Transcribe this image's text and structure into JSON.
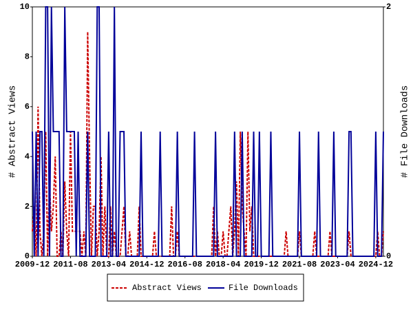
{
  "chart_data": {
    "type": "line",
    "x": [
      "2009-12",
      "2010-01",
      "2010-02",
      "2010-03",
      "2010-04",
      "2010-05",
      "2010-06",
      "2010-07",
      "2010-08",
      "2010-09",
      "2010-10",
      "2010-11",
      "2010-12",
      "2011-01",
      "2011-02",
      "2011-03",
      "2011-04",
      "2011-05",
      "2011-06",
      "2011-07",
      "2011-08",
      "2011-09",
      "2011-10",
      "2011-11",
      "2011-12",
      "2012-01",
      "2012-02",
      "2012-03",
      "2012-04",
      "2012-05",
      "2012-06",
      "2012-07",
      "2012-08",
      "2012-09",
      "2012-10",
      "2012-11",
      "2012-12",
      "2013-01",
      "2013-02",
      "2013-03",
      "2013-04",
      "2013-05",
      "2013-06",
      "2013-07",
      "2013-08",
      "2013-09",
      "2013-10",
      "2013-11",
      "2013-12",
      "2014-01",
      "2014-02",
      "2014-03",
      "2014-04",
      "2014-05",
      "2014-06",
      "2014-07",
      "2014-08",
      "2014-09",
      "2014-10",
      "2014-11",
      "2014-12",
      "2015-01",
      "2015-02",
      "2015-03",
      "2015-04",
      "2015-05",
      "2015-06",
      "2015-07",
      "2015-08",
      "2015-09",
      "2015-10",
      "2015-11",
      "2015-12",
      "2016-01",
      "2016-02",
      "2016-03",
      "2016-04",
      "2016-05",
      "2016-06",
      "2016-07",
      "2016-08",
      "2016-09",
      "2016-10",
      "2016-11",
      "2016-12",
      "2017-01",
      "2017-02",
      "2017-03",
      "2017-04",
      "2017-05",
      "2017-06",
      "2017-07",
      "2017-08",
      "2017-09",
      "2017-10",
      "2017-11",
      "2017-12",
      "2018-01",
      "2018-02",
      "2018-03",
      "2018-04",
      "2018-05",
      "2018-06",
      "2018-07",
      "2018-08",
      "2018-09",
      "2018-10",
      "2018-11",
      "2018-12",
      "2019-01",
      "2019-02",
      "2019-03",
      "2019-04",
      "2019-05",
      "2019-06",
      "2019-07",
      "2019-08",
      "2019-09",
      "2019-10",
      "2019-11",
      "2019-12",
      "2020-01",
      "2020-02",
      "2020-03",
      "2020-04",
      "2020-05",
      "2020-06",
      "2020-07",
      "2020-08",
      "2020-09",
      "2020-10",
      "2020-11",
      "2020-12",
      "2021-01",
      "2021-02",
      "2021-03",
      "2021-04",
      "2021-05",
      "2021-06",
      "2021-07",
      "2021-08",
      "2021-09",
      "2021-10",
      "2021-11",
      "2021-12",
      "2022-01",
      "2022-02",
      "2022-03",
      "2022-04",
      "2022-05",
      "2022-06",
      "2022-07",
      "2022-08",
      "2022-09",
      "2022-10",
      "2022-11",
      "2022-12",
      "2023-01",
      "2023-02",
      "2023-03",
      "2023-04",
      "2023-05",
      "2023-06",
      "2023-07",
      "2023-08",
      "2023-09",
      "2023-10",
      "2023-11",
      "2023-12",
      "2024-01",
      "2024-02",
      "2024-03",
      "2024-04",
      "2024-05",
      "2024-06",
      "2024-07",
      "2024-08",
      "2024-09",
      "2024-10",
      "2024-11",
      "2024-12",
      "2025-01",
      "2025-02",
      "2025-03",
      "2025-04"
    ],
    "xticks": [
      "2009-12",
      "2011-08",
      "2013-04",
      "2014-12",
      "2016-08",
      "2018-04",
      "2019-12",
      "2021-08",
      "2023-04",
      "2024-12"
    ],
    "ylabel": "# Abstract Views",
    "y2label": "# File Downloads",
    "ylim": [
      0,
      10
    ],
    "yticks": [
      0,
      2,
      4,
      6,
      8,
      10
    ],
    "y2lim": [
      0,
      2
    ],
    "y2ticks": [
      0,
      2
    ],
    "series": [
      {
        "name": "Abstract Views",
        "color": "#cc0000",
        "dash": true,
        "values": [
          1,
          2,
          0,
          6,
          1,
          0,
          1,
          5,
          0,
          3,
          1,
          2,
          4,
          0,
          0,
          1,
          0,
          3,
          1,
          0,
          5,
          1,
          1,
          1,
          1,
          1,
          0,
          1,
          0,
          9,
          4,
          0,
          2,
          2,
          0,
          1,
          4,
          0,
          2,
          0,
          0,
          2,
          0,
          1,
          0,
          0,
          0,
          1,
          2,
          0,
          0,
          1,
          0,
          0,
          0,
          0,
          2,
          0,
          0,
          0,
          0,
          0,
          0,
          0,
          1,
          0,
          0,
          0,
          0,
          0,
          0,
          0,
          0,
          2,
          0,
          0,
          1,
          0,
          0,
          0,
          0,
          0,
          0,
          0,
          0,
          0,
          0,
          0,
          0,
          0,
          0,
          0,
          0,
          0,
          0,
          2,
          0,
          1,
          0,
          0,
          1,
          0,
          0,
          1,
          2,
          0,
          1,
          3,
          0,
          5,
          2,
          1,
          0,
          5,
          1,
          2,
          0,
          0,
          0,
          0,
          0,
          0,
          0,
          0,
          0,
          0,
          0,
          0,
          0,
          0,
          0,
          0,
          0,
          1,
          0,
          0,
          0,
          0,
          0,
          0,
          1,
          0,
          0,
          0,
          0,
          0,
          0,
          0,
          1,
          0,
          0,
          0,
          0,
          0,
          0,
          0,
          1,
          0,
          0,
          0,
          0,
          0,
          0,
          0,
          0,
          0,
          1,
          0,
          0,
          0,
          0,
          0,
          0,
          0,
          0,
          0,
          0,
          0,
          0,
          0,
          0,
          1,
          0,
          0,
          1
        ]
      },
      {
        "name": "File Downloads",
        "color": "#000099",
        "axis": "y2",
        "values": [
          1,
          0,
          1,
          0,
          1,
          1,
          0,
          2,
          2,
          0,
          2,
          1,
          1,
          1,
          1,
          0,
          0,
          2,
          1,
          1,
          1,
          1,
          1,
          0,
          1,
          0,
          0,
          0,
          0,
          1,
          0,
          0,
          0,
          0,
          2,
          2,
          0,
          0,
          0,
          0,
          1,
          0,
          0,
          2,
          0,
          0,
          1,
          1,
          1,
          0,
          0,
          0,
          0,
          0,
          0,
          0,
          0,
          1,
          0,
          0,
          0,
          0,
          0,
          0,
          0,
          0,
          0,
          1,
          0,
          0,
          0,
          0,
          0,
          0,
          0,
          0,
          1,
          0,
          0,
          0,
          0,
          0,
          0,
          0,
          0,
          1,
          0,
          0,
          0,
          0,
          0,
          0,
          0,
          0,
          0,
          0,
          1,
          0,
          0,
          0,
          0,
          0,
          0,
          0,
          0,
          0,
          1,
          0,
          0,
          0,
          1,
          0,
          0,
          0,
          0,
          0,
          1,
          0,
          0,
          1,
          0,
          0,
          0,
          0,
          0,
          1,
          0,
          0,
          0,
          0,
          0,
          0,
          0,
          0,
          0,
          0,
          0,
          0,
          0,
          0,
          1,
          0,
          0,
          0,
          0,
          0,
          0,
          0,
          0,
          0,
          1,
          0,
          0,
          0,
          0,
          0,
          0,
          0,
          1,
          0,
          0,
          0,
          0,
          0,
          0,
          0,
          1,
          1,
          0,
          0,
          0,
          0,
          0,
          0,
          0,
          0,
          0,
          0,
          0,
          0,
          1,
          0,
          0,
          0,
          1
        ]
      }
    ]
  }
}
